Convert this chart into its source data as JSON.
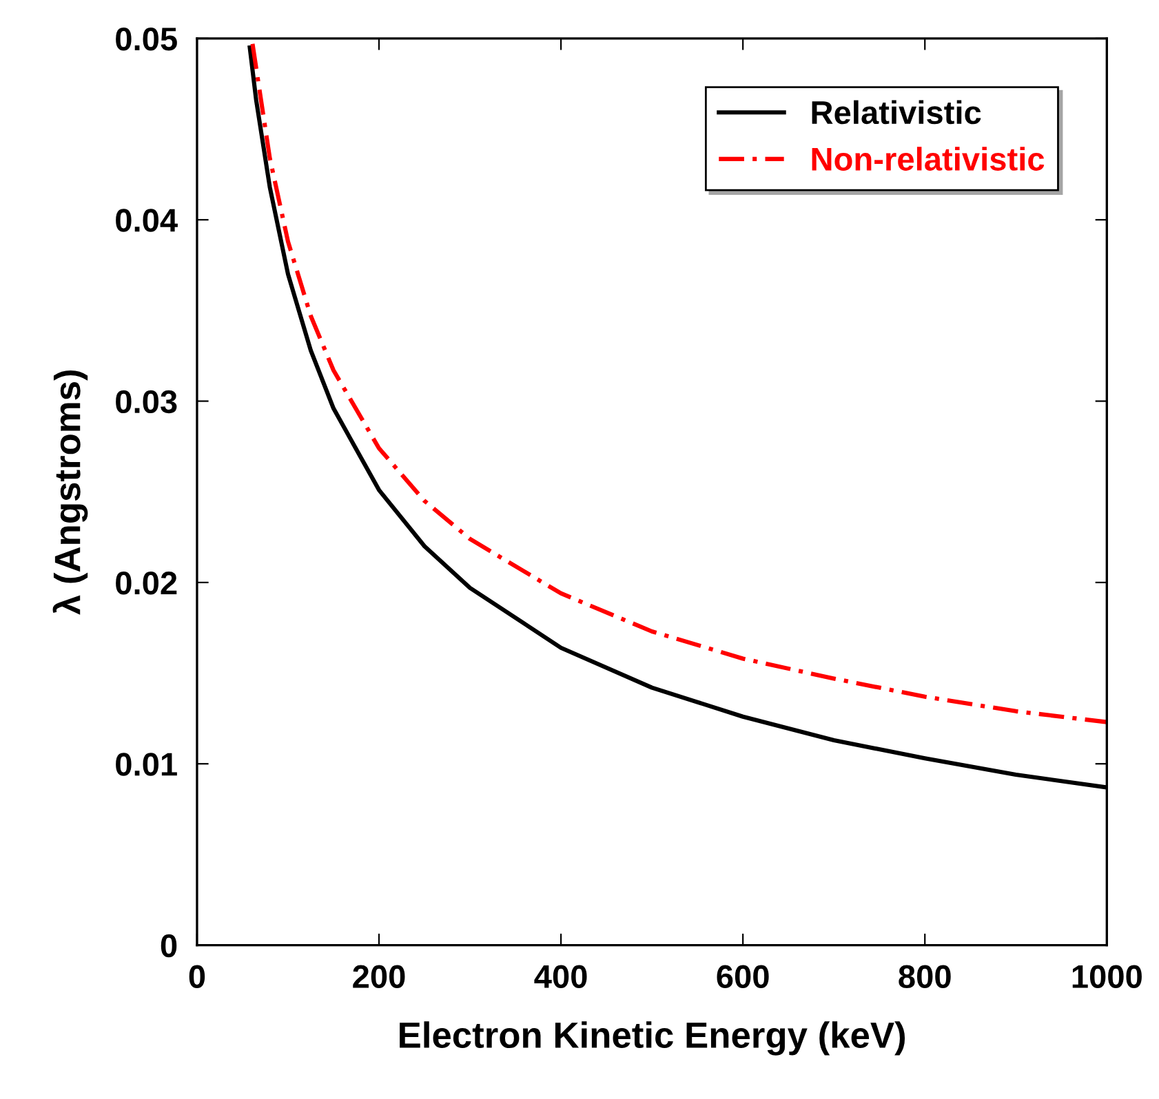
{
  "chart_data": {
    "type": "line",
    "xlabel": "Electron Kinetic Energy (keV)",
    "ylabel": "λ (Angstroms)",
    "xlim": [
      0,
      1000
    ],
    "xticks": [
      0,
      200,
      400,
      600,
      800,
      1000
    ],
    "ylim": [
      0,
      0.05
    ],
    "yticks": [
      0,
      0.01,
      0.02,
      0.03,
      0.04,
      0.05
    ],
    "grid": false,
    "legend": "top right",
    "series": [
      {
        "name": "Relativistic",
        "color": "#000000",
        "line_style": "solid",
        "x": [
          58,
          65,
          80,
          100,
          125,
          150,
          200,
          250,
          300,
          400,
          500,
          600,
          700,
          800,
          900,
          1000
        ],
        "values": [
          0.0495,
          0.0466,
          0.0418,
          0.037,
          0.0328,
          0.0296,
          0.0251,
          0.022,
          0.0197,
          0.0164,
          0.0142,
          0.0126,
          0.0113,
          0.0103,
          0.0094,
          0.0087
        ]
      },
      {
        "name": "Non-relativistic",
        "color": "#ff0000",
        "line_style": "dashed",
        "x": [
          61,
          80,
          100,
          125,
          150,
          200,
          250,
          300,
          400,
          500,
          600,
          700,
          800,
          900,
          1000
        ],
        "values": [
          0.0497,
          0.0434,
          0.0388,
          0.0347,
          0.0317,
          0.0274,
          0.0245,
          0.0224,
          0.0194,
          0.0173,
          0.0158,
          0.0147,
          0.0137,
          0.0129,
          0.0123
        ]
      }
    ]
  }
}
